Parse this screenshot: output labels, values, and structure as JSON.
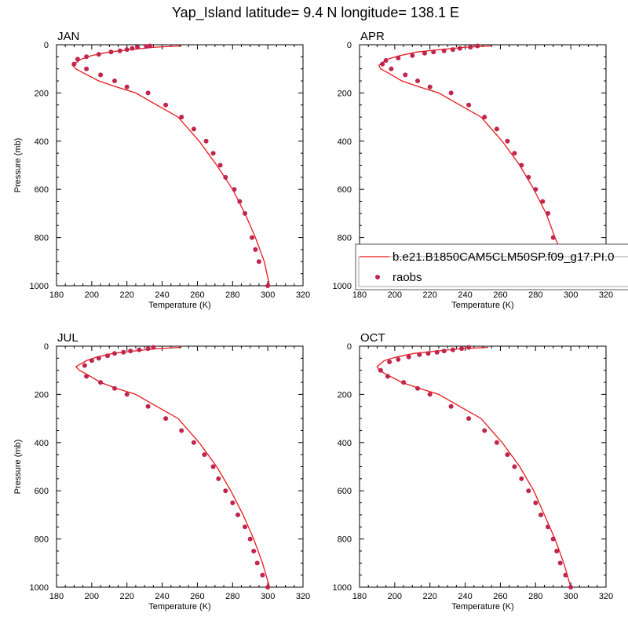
{
  "figure": {
    "title": "Yap_Island  latitude= 9.4 N longitude= 138.1 E"
  },
  "legend": {
    "model_label": "b.e21.B1850CAM5CLM50SP.f09_g17.PI.0",
    "obs_label": "raobs"
  },
  "colors": {
    "model_line": "#e8191b",
    "obs_marker": "#c0254e",
    "axis": "#000000"
  },
  "chart_data": [
    {
      "type": "line",
      "title": "JAN",
      "xlabel": "Temperature (K)",
      "ylabel": "Pressure (mb)",
      "xlim": [
        180,
        320
      ],
      "ylim": [
        1000,
        0
      ],
      "y_reversed": true,
      "x_ticks": [
        180,
        200,
        220,
        240,
        260,
        280,
        300,
        320
      ],
      "y_ticks": [
        0,
        200,
        400,
        600,
        800,
        1000
      ],
      "series": [
        {
          "name": "b.e21.B1850CAM5CLM50SP.f09_g17.PI.0",
          "kind": "line",
          "x": [
            251,
            236,
            222,
            210,
            200,
            194,
            189,
            191,
            196,
            204,
            214,
            225,
            237,
            249,
            261,
            271,
            280,
            287,
            293,
            298,
            301
          ],
          "y": [
            5,
            10,
            20,
            30,
            45,
            60,
            85,
            100,
            120,
            150,
            175,
            200,
            250,
            300,
            400,
            500,
            600,
            700,
            800,
            900,
            1000
          ]
        },
        {
          "name": "raobs",
          "kind": "scatter",
          "x": [
            233,
            231,
            226,
            223,
            220,
            216,
            211,
            204,
            197,
            192,
            190,
            197,
            205,
            213,
            220,
            232,
            242,
            251,
            258,
            265,
            269,
            273,
            276,
            281,
            284,
            287,
            291,
            293,
            295,
            300
          ],
          "y": [
            5,
            7,
            10,
            15,
            20,
            25,
            30,
            40,
            50,
            60,
            80,
            100,
            125,
            150,
            175,
            200,
            250,
            300,
            350,
            400,
            450,
            500,
            550,
            600,
            650,
            700,
            800,
            850,
            900,
            1000
          ]
        }
      ]
    },
    {
      "type": "line",
      "title": "APR",
      "xlabel": "Temperature (K)",
      "ylabel": "",
      "xlim": [
        180,
        320
      ],
      "ylim": [
        1000,
        0
      ],
      "y_reversed": true,
      "x_ticks": [
        180,
        200,
        220,
        240,
        260,
        280,
        300,
        320
      ],
      "y_ticks": [
        0,
        200,
        400,
        600,
        800,
        1000
      ],
      "series": [
        {
          "name": "b.e21.B1850CAM5CLM50SP.f09_g17.PI.0",
          "kind": "line",
          "x": [
            255,
            240,
            226,
            213,
            203,
            196,
            191,
            192,
            197,
            204,
            214,
            225,
            237,
            249,
            261,
            271,
            279,
            286,
            291,
            297,
            301
          ],
          "y": [
            5,
            10,
            20,
            30,
            45,
            60,
            85,
            100,
            120,
            150,
            175,
            200,
            250,
            300,
            400,
            500,
            600,
            700,
            800,
            900,
            1000
          ]
        },
        {
          "name": "raobs",
          "kind": "scatter",
          "x": [
            247,
            243,
            237,
            233,
            228,
            222,
            217,
            210,
            202,
            195,
            193,
            198,
            206,
            213,
            220,
            232,
            242,
            251,
            258,
            264,
            268,
            272,
            276,
            280,
            284,
            287,
            290,
            292,
            295,
            300
          ],
          "y": [
            5,
            10,
            15,
            20,
            25,
            30,
            35,
            45,
            55,
            65,
            80,
            100,
            125,
            150,
            175,
            200,
            250,
            300,
            350,
            400,
            450,
            500,
            550,
            600,
            650,
            700,
            800,
            850,
            900,
            1000
          ]
        }
      ]
    },
    {
      "type": "line",
      "title": "JUL",
      "xlabel": "Temperature (K)",
      "ylabel": "Pressure (mb)",
      "xlim": [
        180,
        320
      ],
      "ylim": [
        1000,
        0
      ],
      "y_reversed": true,
      "x_ticks": [
        180,
        200,
        220,
        240,
        260,
        280,
        300,
        320
      ],
      "y_ticks": [
        0,
        200,
        400,
        600,
        800,
        1000
      ],
      "series": [
        {
          "name": "b.e21.B1850CAM5CLM50SP.f09_g17.PI.0",
          "kind": "line",
          "x": [
            251,
            237,
            224,
            212,
            203,
            197,
            191,
            193,
            198,
            205,
            214,
            225,
            237,
            249,
            261,
            271,
            279,
            286,
            292,
            297,
            301
          ],
          "y": [
            5,
            10,
            20,
            30,
            45,
            60,
            85,
            100,
            120,
            150,
            175,
            200,
            250,
            300,
            400,
            500,
            600,
            700,
            800,
            900,
            1000
          ]
        },
        {
          "name": "raobs",
          "kind": "scatter",
          "x": [
            235,
            232,
            227,
            222,
            218,
            213,
            209,
            204,
            200,
            196,
            197,
            205,
            213,
            220,
            232,
            242,
            251,
            258,
            264,
            269,
            272,
            276,
            280,
            283,
            287,
            290,
            292,
            294,
            297,
            300
          ],
          "y": [
            5,
            10,
            15,
            20,
            25,
            30,
            40,
            50,
            60,
            80,
            125,
            150,
            175,
            200,
            250,
            300,
            350,
            400,
            450,
            500,
            550,
            600,
            650,
            700,
            750,
            800,
            850,
            900,
            950,
            1000
          ]
        }
      ]
    },
    {
      "type": "line",
      "title": "OCT",
      "xlabel": "Temperature (K)",
      "ylabel": "",
      "xlim": [
        180,
        320
      ],
      "ylim": [
        1000,
        0
      ],
      "y_reversed": true,
      "x_ticks": [
        180,
        200,
        220,
        240,
        260,
        280,
        300,
        320
      ],
      "y_ticks": [
        0,
        200,
        400,
        600,
        800,
        1000
      ],
      "series": [
        {
          "name": "b.e21.B1850CAM5CLM50SP.f09_g17.PI.0",
          "kind": "line",
          "x": [
            253,
            238,
            224,
            211,
            201,
            194,
            190,
            191,
            196,
            204,
            214,
            225,
            237,
            249,
            261,
            271,
            279,
            285,
            291,
            296,
            300
          ],
          "y": [
            5,
            10,
            20,
            30,
            45,
            60,
            85,
            100,
            120,
            150,
            175,
            200,
            250,
            300,
            400,
            500,
            600,
            700,
            800,
            900,
            1000
          ]
        },
        {
          "name": "raobs",
          "kind": "scatter",
          "x": [
            242,
            238,
            233,
            228,
            224,
            219,
            214,
            208,
            202,
            197,
            192,
            196,
            205,
            213,
            220,
            232,
            242,
            251,
            258,
            264,
            268,
            272,
            276,
            280,
            283,
            287,
            290,
            292,
            294,
            297,
            300
          ],
          "y": [
            5,
            10,
            15,
            20,
            25,
            30,
            35,
            45,
            55,
            65,
            100,
            125,
            150,
            175,
            200,
            250,
            300,
            350,
            400,
            450,
            500,
            550,
            600,
            650,
            700,
            750,
            800,
            850,
            900,
            950,
            1000
          ]
        }
      ]
    }
  ]
}
